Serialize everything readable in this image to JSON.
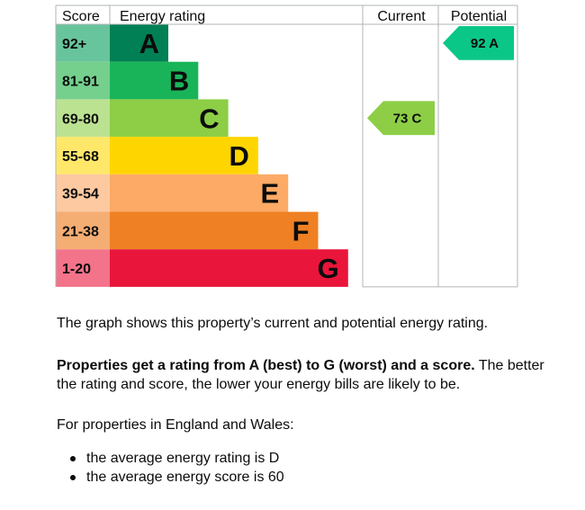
{
  "chart_data": {
    "type": "bar",
    "headers": {
      "score": "Score",
      "rating": "Energy rating",
      "current": "Current",
      "potential": "Potential"
    },
    "bands": [
      {
        "letter": "A",
        "range": "92+",
        "color": "#008054",
        "score_color": "#68c49c"
      },
      {
        "letter": "B",
        "range": "81-91",
        "color": "#19b459",
        "score_color": "#75cf8d"
      },
      {
        "letter": "C",
        "range": "69-80",
        "color": "#8dce46",
        "score_color": "#bbe291"
      },
      {
        "letter": "D",
        "range": "55-68",
        "color": "#ffd500",
        "score_color": "#ffe76a"
      },
      {
        "letter": "E",
        "range": "39-54",
        "color": "#fcaa65",
        "score_color": "#fdc9a1"
      },
      {
        "letter": "F",
        "range": "21-38",
        "color": "#ef8023",
        "score_color": "#f4ad73"
      },
      {
        "letter": "G",
        "range": "1-20",
        "color": "#e9153b",
        "score_color": "#f3738a"
      }
    ],
    "current": {
      "score": 73,
      "band": "C",
      "label": "73 C",
      "color": "#8dce46"
    },
    "potential": {
      "score": 92,
      "band": "A",
      "label": "92 A",
      "color": "#0bc787"
    }
  },
  "text": {
    "intro": "The graph shows this property’s current and potential energy rating.",
    "rating_bold": "Properties get a rating from A (best) to G (worst) and a score.",
    "rating_rest": " The better the rating and score, the lower your energy bills are likely to be.",
    "average_intro": "For properties in England and Wales:",
    "bullets": [
      "the average energy rating is D",
      "the average energy score is 60"
    ]
  }
}
